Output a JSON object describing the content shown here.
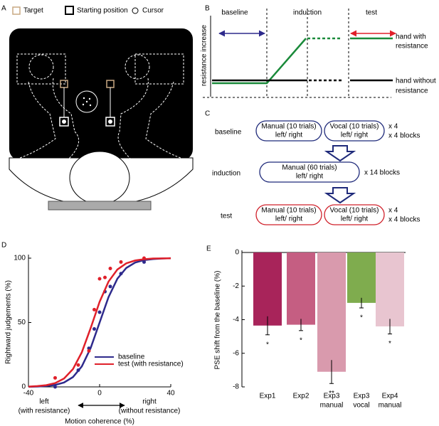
{
  "panel_a": {
    "label": "A",
    "legend": [
      "Target",
      "Starting position",
      "Cursor"
    ]
  },
  "panel_b": {
    "label": "B",
    "phases": [
      "baseline",
      "induction",
      "test"
    ],
    "y_label": "resistance increase",
    "line_labels": [
      [
        "hand with",
        "resistance"
      ],
      [
        "hand without",
        "resistance"
      ]
    ]
  },
  "panel_c": {
    "label": "C",
    "rows": [
      {
        "name": "baseline",
        "boxes": [
          [
            "Manual (10 trials)",
            "left/ right"
          ],
          [
            "Vocal (10 trials)",
            "left/ right"
          ]
        ],
        "repeat": [
          "x 4",
          "x 4 blocks"
        ]
      },
      {
        "name": "induction",
        "boxes": [
          [
            "Manual (60 trials)",
            "left/ right"
          ]
        ],
        "repeat": [
          "x 14 blocks"
        ]
      },
      {
        "name": "test",
        "boxes": [
          [
            "Manual (10 trials)",
            "left/ right"
          ],
          [
            "Vocal (10 trials)",
            "left/ right"
          ]
        ],
        "repeat": [
          "x 4",
          "x 4 blocks"
        ]
      }
    ]
  },
  "chart_data": [
    {
      "type": "scatter",
      "label": "D",
      "x_label": "Motion coherence (%)",
      "y_label": "Rightward judgements (%)",
      "xlim": [
        -40,
        40
      ],
      "xticks": [
        -40,
        0,
        40
      ],
      "ylim": [
        0,
        100
      ],
      "yticks": [
        0,
        50,
        100
      ],
      "annotations": [
        "left",
        "(with resistance)",
        "right",
        "(without resistance)"
      ],
      "series": [
        {
          "name": "baseline",
          "color": "#2e2a8c",
          "x": [
            -25,
            -12,
            -6,
            -3,
            0,
            3,
            6,
            12,
            25
          ],
          "values": [
            0,
            13,
            30,
            45,
            58,
            74,
            78,
            88,
            97
          ],
          "curve": {
            "x": [
              -40,
              -35,
              -30,
              -25,
              -20,
              -15,
              -10,
              -5,
              0,
              5,
              10,
              15,
              20,
              25,
              30,
              35,
              40
            ],
            "values": [
              0.1,
              0.3,
              0.7,
              1.5,
              3.4,
              7.6,
              15.9,
              30.3,
              50,
              69.7,
              84.1,
              92.4,
              96.6,
              98.5,
              99.3,
              99.7,
              99.9
            ]
          }
        },
        {
          "name": "test (with resistance)",
          "color": "#e0202a",
          "x": [
            -25,
            -12,
            -6,
            -3,
            0,
            3,
            6,
            12,
            25
          ],
          "values": [
            7,
            17,
            28,
            60,
            84,
            85,
            92,
            97,
            100
          ],
          "curve": {
            "x": [
              -40,
              -35,
              -30,
              -25,
              -20,
              -15,
              -10,
              -5,
              0,
              5,
              10,
              15,
              20,
              25,
              30,
              35,
              40
            ],
            "values": [
              0.2,
              0.6,
              1.3,
              2.9,
              6.5,
              13.8,
              26.9,
              45.8,
              66.1,
              81.8,
              91.2,
              96.0,
              98.2,
              99.2,
              99.7,
              99.8,
              99.9
            ]
          }
        }
      ]
    },
    {
      "type": "bar",
      "label": "E",
      "y_label": "PSE shift from the baseline (%)",
      "categories": [
        [
          "Exp1"
        ],
        [
          "Exp2"
        ],
        [
          "Exp3",
          "manual"
        ],
        [
          "Exp3",
          "vocal"
        ],
        [
          "Exp4",
          "manual"
        ]
      ],
      "values": [
        -4.35,
        -4.3,
        -7.1,
        -3.0,
        -4.4
      ],
      "errors": [
        0.55,
        0.35,
        0.7,
        0.3,
        0.45
      ],
      "colors": [
        "#a8245a",
        "#c55e82",
        "#d99aad",
        "#7fac4e",
        "#e8c5d0"
      ],
      "significance": [
        "*",
        "*",
        "**",
        "*",
        "*"
      ],
      "ylim": [
        -8,
        0
      ],
      "yticks": [
        0,
        -2,
        -4,
        -6,
        -8
      ]
    }
  ]
}
